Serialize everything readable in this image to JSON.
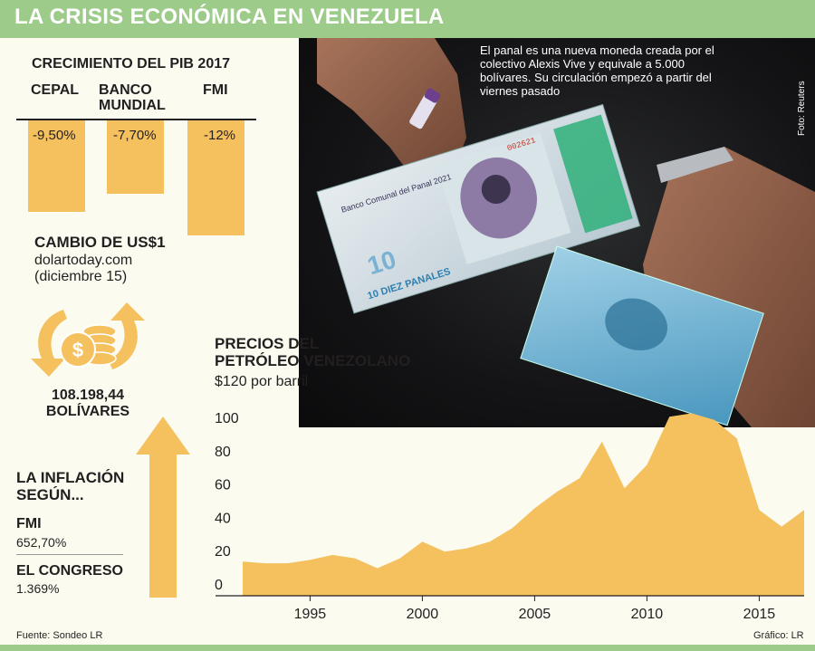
{
  "header": {
    "title": "LA CRISIS ECONÓMICA EN VENEZUELA"
  },
  "photo": {
    "caption": "El panal es una nueva moneda creada por el colectivo Alexis Vive y equivale a 5.000 bolívares. Su circulación empezó a partir del viernes pasado",
    "credit": "Foto: Reuters",
    "note_text": {
      "bank": "Banco Comunal del Panal 2021",
      "denomination": "10",
      "denomination_words": "10 DIEZ PANALES",
      "serial": "002621"
    }
  },
  "pib": {
    "title": "CRECIMIENTO DEL PIB 2017",
    "items": [
      {
        "label_lines": [
          "",
          "CEPAL"
        ],
        "value": -9.5,
        "value_label": "-9,50%"
      },
      {
        "label_lines": [
          "BANCO",
          "MUNDIAL"
        ],
        "value": -7.7,
        "value_label": "-7,70%"
      },
      {
        "label_lines": [
          "",
          "FMI"
        ],
        "value": -12,
        "value_label": "-12%"
      }
    ],
    "bar_color": "#f4c15e"
  },
  "cambio": {
    "title": "CAMBIO DE US$1",
    "source": "dolartoday.com",
    "date": "(diciembre 15)",
    "value": "108.198,44",
    "unit": "BOLÍVARES",
    "icon": "coins-exchange-icon"
  },
  "inflacion": {
    "title_line1": "LA INFLACIÓN",
    "title_line2": "SEGÚN...",
    "items": [
      {
        "name": "FMI",
        "value": "652,70%"
      },
      {
        "name": "EL CONGRESO",
        "value": "1.369%"
      }
    ],
    "icon": "up-arrow-icon"
  },
  "oil": {
    "title_line1": "PRECIOS DEL",
    "title_line2": "PETRÓLEO VENEZOLANO",
    "unit_label": "$120 por barril"
  },
  "chart_data": {
    "type": "area",
    "title": "PRECIOS DEL PETRÓLEO VENEZOLANO",
    "ylabel": "$120 por barril",
    "x": [
      1992,
      1993,
      1994,
      1995,
      1996,
      1997,
      1998,
      1999,
      2000,
      2001,
      2002,
      2003,
      2004,
      2005,
      2006,
      2007,
      2008,
      2009,
      2010,
      2011,
      2012,
      2013,
      2014,
      2015,
      2016,
      2017
    ],
    "values": [
      14,
      13,
      13,
      15,
      18,
      16,
      10,
      16,
      26,
      20,
      22,
      26,
      34,
      46,
      56,
      64,
      86,
      58,
      72,
      101,
      103,
      99,
      88,
      45,
      35,
      45
    ],
    "x_ticks": [
      1995,
      2000,
      2005,
      2010,
      2015
    ],
    "y_ticks": [
      0,
      20,
      40,
      60,
      80,
      100
    ],
    "xlim": [
      1992,
      2017
    ],
    "ylim": [
      0,
      120
    ],
    "grid": false,
    "color": "#f4c15e"
  },
  "footer": {
    "source": "Fuente: Sondeo LR",
    "credit": "Gráfico: LR"
  },
  "colors": {
    "accent": "#9ccb8a",
    "bar": "#f4c15e",
    "background": "#fbfbf0",
    "text": "#231f20"
  }
}
